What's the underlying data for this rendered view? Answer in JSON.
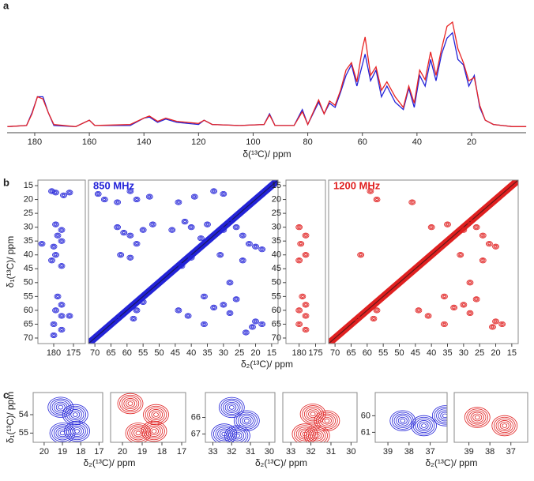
{
  "chart_data": [
    {
      "type": "line",
      "panel": "a",
      "xlabel": "δ(¹³C)/ ppm",
      "x": [
        190,
        183,
        181,
        179,
        177,
        175,
        173,
        165,
        160,
        158,
        145,
        140,
        138,
        135,
        132,
        128,
        120,
        118,
        115,
        105,
        96,
        94,
        92,
        85,
        82,
        80,
        76,
        74,
        72,
        70,
        68,
        66,
        64,
        62,
        60,
        59,
        57,
        55,
        53,
        51,
        48,
        45,
        43,
        41,
        39,
        37,
        35,
        33,
        31,
        29,
        27,
        25,
        23,
        21,
        19,
        17,
        15,
        12,
        5,
        0
      ],
      "series": [
        {
          "name": "850 MHz",
          "color": "#2323d8",
          "values": [
            2,
            3,
            15,
            30,
            30,
            15,
            3,
            2,
            8,
            3,
            3,
            10,
            11,
            6,
            9,
            6,
            4,
            8,
            4,
            3,
            4,
            14,
            3,
            3,
            18,
            4,
            25,
            14,
            24,
            20,
            34,
            50,
            60,
            40,
            60,
            70,
            45,
            55,
            30,
            40,
            25,
            18,
            38,
            20,
            50,
            40,
            65,
            45,
            70,
            85,
            90,
            65,
            60,
            40,
            50,
            20,
            8,
            4,
            2,
            2
          ]
        },
        {
          "name": "1200 MHz",
          "color": "#e82323",
          "values": [
            2,
            3,
            14,
            30,
            28,
            15,
            4,
            2,
            8,
            3,
            4,
            10,
            12,
            7,
            10,
            7,
            5,
            8,
            4,
            3,
            4,
            13,
            3,
            3,
            16,
            4,
            27,
            14,
            26,
            22,
            36,
            55,
            62,
            44,
            75,
            86,
            50,
            58,
            36,
            44,
            30,
            20,
            40,
            24,
            55,
            46,
            72,
            50,
            75,
            96,
            100,
            75,
            62,
            45,
            48,
            22,
            8,
            4,
            2,
            2
          ]
        }
      ],
      "xlim": [
        190,
        0
      ],
      "xticks": [
        180,
        160,
        140,
        120,
        100,
        80,
        60,
        40,
        20
      ],
      "ylim": [
        0,
        100
      ]
    },
    {
      "type": "contour",
      "panel": "b",
      "title": "850 MHz",
      "color": "#2323d8",
      "xlabel": "δ₂(¹³C)/ ppm",
      "ylabel": "δ₁(¹³C)/ ppm",
      "xlim": [
        72,
        13
      ],
      "xticks": [
        70,
        65,
        60,
        55,
        50,
        45,
        40,
        35,
        30,
        25,
        20,
        15
      ],
      "strip_xlim": [
        184,
        172
      ],
      "strip_xticks": [
        180,
        175
      ],
      "ylim": [
        13,
        72
      ],
      "yticks": [
        15,
        20,
        25,
        30,
        35,
        40,
        45,
        50,
        55,
        60,
        65,
        70
      ],
      "strip_peaks": {
        "x": [
          180.5,
          179.5,
          177.5,
          176,
          179.5,
          178,
          179,
          178,
          180,
          183,
          179.5,
          180.5,
          178,
          179,
          178,
          179.5,
          178,
          180,
          178,
          180,
          176
        ],
        "y": [
          17,
          17.5,
          18.5,
          17.5,
          29,
          31,
          33,
          35,
          37,
          36,
          40,
          42,
          44,
          55,
          58,
          60,
          62,
          65,
          67,
          69,
          62
        ]
      },
      "peaks": {
        "x": [
          69,
          67,
          63,
          59,
          57,
          53,
          44,
          39,
          33,
          30,
          63,
          61,
          59,
          55,
          57,
          52,
          46,
          42,
          40,
          37,
          35,
          30,
          28,
          26,
          24,
          22,
          20,
          18,
          31,
          24,
          62,
          59,
          28,
          36,
          33,
          30,
          28,
          26,
          57,
          58,
          63,
          55,
          44,
          41,
          36,
          20,
          21,
          23,
          18,
          40,
          43
        ],
        "y": [
          18,
          20,
          21,
          17,
          20,
          19,
          21,
          19,
          17,
          18,
          30,
          32,
          33,
          31,
          36,
          29,
          31,
          28,
          30,
          34,
          29,
          31,
          28,
          30,
          33,
          36,
          37,
          38,
          40,
          42,
          40,
          41,
          50,
          55,
          59,
          58,
          61,
          56,
          60,
          63,
          63,
          57,
          60,
          62,
          65,
          64,
          66,
          68,
          65,
          41,
          44
        ]
      }
    },
    {
      "type": "contour",
      "title": "1200 MHz",
      "color": "#e02020",
      "xlim": [
        72,
        13
      ],
      "xticks": [
        70,
        65,
        60,
        55,
        50,
        45,
        40,
        35,
        30,
        25,
        20,
        15
      ],
      "strip_xlim": [
        184,
        172
      ],
      "strip_xticks": [
        180,
        175
      ],
      "ylim": [
        13,
        72
      ],
      "yticks": [
        15,
        20,
        25,
        30,
        35,
        40,
        45,
        50,
        55,
        60,
        65,
        70
      ],
      "strip_peaks": {
        "x": [
          180,
          178,
          179.5,
          178,
          180,
          179,
          178,
          180,
          178,
          180,
          178
        ],
        "y": [
          30,
          33,
          36,
          40,
          42,
          55,
          58,
          60,
          62,
          65,
          67
        ]
      },
      "peaks": {
        "x": [
          59,
          57,
          46,
          40,
          35,
          30,
          28,
          26,
          24,
          22,
          20,
          31,
          24,
          62,
          28,
          36,
          33,
          30,
          28,
          26,
          57,
          58,
          63,
          44,
          41,
          36,
          20,
          21,
          18
        ],
        "y": [
          17,
          20,
          21,
          30,
          29,
          31,
          28,
          30,
          33,
          36,
          37,
          40,
          42,
          40,
          50,
          55,
          59,
          58,
          61,
          56,
          60,
          63,
          63,
          60,
          62,
          65,
          64,
          66,
          65
        ]
      }
    },
    {
      "type": "contour",
      "panel": "c",
      "color": "#2323d8",
      "xlabel": "δ₂(¹³C)/ ppm",
      "ylabel": "δ₁(¹³C)/ ppm",
      "xlim": [
        20.6,
        16.8
      ],
      "xticks": [
        20,
        19,
        18,
        17
      ],
      "ylim": [
        52.8,
        55.5
      ],
      "yticks": [
        54,
        55
      ],
      "peaks": {
        "x": [
          19.1,
          18.3,
          19.0,
          18.2
        ],
        "y": [
          53.6,
          54.0,
          55.0,
          54.9
        ]
      }
    },
    {
      "type": "contour",
      "color": "#e02020",
      "xlim": [
        20.6,
        16.8
      ],
      "xticks": [
        20,
        19,
        18,
        17
      ],
      "ylim": [
        52.8,
        55.5
      ],
      "peaks": {
        "x": [
          18.3,
          19.2,
          18.4,
          19.6
        ],
        "y": [
          54.0,
          55.0,
          54.9,
          53.4
        ]
      }
    },
    {
      "type": "contour",
      "color": "#2323d8",
      "xlabel": "δ₂(¹³C)/ ppm",
      "xlim": [
        33.4,
        29.7
      ],
      "xticks": [
        33,
        32,
        31,
        30
      ],
      "ylim": [
        64.5,
        67.5
      ],
      "yticks": [
        66,
        67
      ],
      "peaks": {
        "x": [
          32.0,
          31.2,
          32.4,
          31.7
        ],
        "y": [
          65.4,
          66.2,
          67.0,
          67.1
        ]
      }
    },
    {
      "type": "contour",
      "color": "#e02020",
      "xlim": [
        33.4,
        29.7
      ],
      "xticks": [
        33,
        32,
        31,
        30
      ],
      "ylim": [
        64.5,
        67.5
      ],
      "peaks": {
        "x": [
          31.9,
          31.2,
          32.3,
          31.7
        ],
        "y": [
          65.8,
          66.2,
          67.0,
          67.1
        ]
      }
    },
    {
      "type": "contour",
      "color": "#2323d8",
      "xlabel": "δ₂(¹³C)/ ppm",
      "xlim": [
        39.6,
        36.2
      ],
      "xticks": [
        39,
        38,
        37
      ],
      "ylim": [
        58.6,
        61.6
      ],
      "yticks": [
        60,
        61
      ],
      "peaks": {
        "x": [
          38.3,
          37.3,
          36.3
        ],
        "y": [
          60.3,
          60.6,
          60.0
        ]
      }
    },
    {
      "type": "contour",
      "color": "#e02020",
      "xlim": [
        39.7,
        36.2
      ],
      "xticks": [
        39,
        38,
        37
      ],
      "ylim": [
        58.6,
        61.6
      ],
      "peaks": {
        "x": [
          38.6,
          37.3
        ],
        "y": [
          60.1,
          60.6
        ]
      }
    }
  ]
}
